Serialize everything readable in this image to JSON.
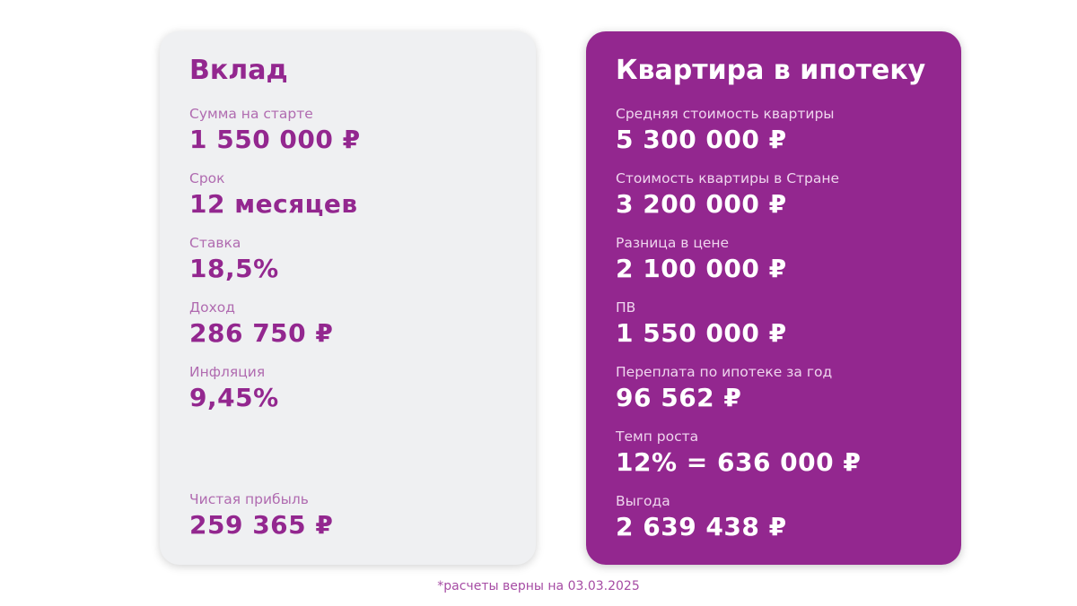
{
  "deposit": {
    "title": "Вклад",
    "items": [
      {
        "label": "Сумма на старте",
        "value": "1 550 000 ₽"
      },
      {
        "label": "Срок",
        "value": "12 месяцев"
      },
      {
        "label": "Ставка",
        "value": "18,5%"
      },
      {
        "label": "Доход",
        "value": "286 750 ₽"
      },
      {
        "label": "Инфляция",
        "value": "9,45%"
      }
    ],
    "net_profit": {
      "label": "Чистая прибыль",
      "value": "259 365 ₽"
    }
  },
  "mortgage": {
    "title": "Квартира в ипотеку",
    "items": [
      {
        "label": "Средняя стоимость квартиры",
        "value": "5 300 000 ₽"
      },
      {
        "label": "Стоимость квартиры в Стране",
        "value": "3 200 000 ₽"
      },
      {
        "label": "Разница в цене",
        "value": "2 100 000 ₽"
      },
      {
        "label": "ПВ",
        "value": "1 550 000 ₽"
      },
      {
        "label": "Переплата по ипотеке за год",
        "value": "96 562 ₽"
      },
      {
        "label": "Темп роста",
        "value": "12% = 636 000 ₽"
      },
      {
        "label": "Выгода",
        "value": "2 639 438 ₽"
      }
    ]
  },
  "footnote": "*расчеты верны на 03.03.2025",
  "colors": {
    "accent": "#93278f",
    "card_light": "#eff0f2"
  }
}
